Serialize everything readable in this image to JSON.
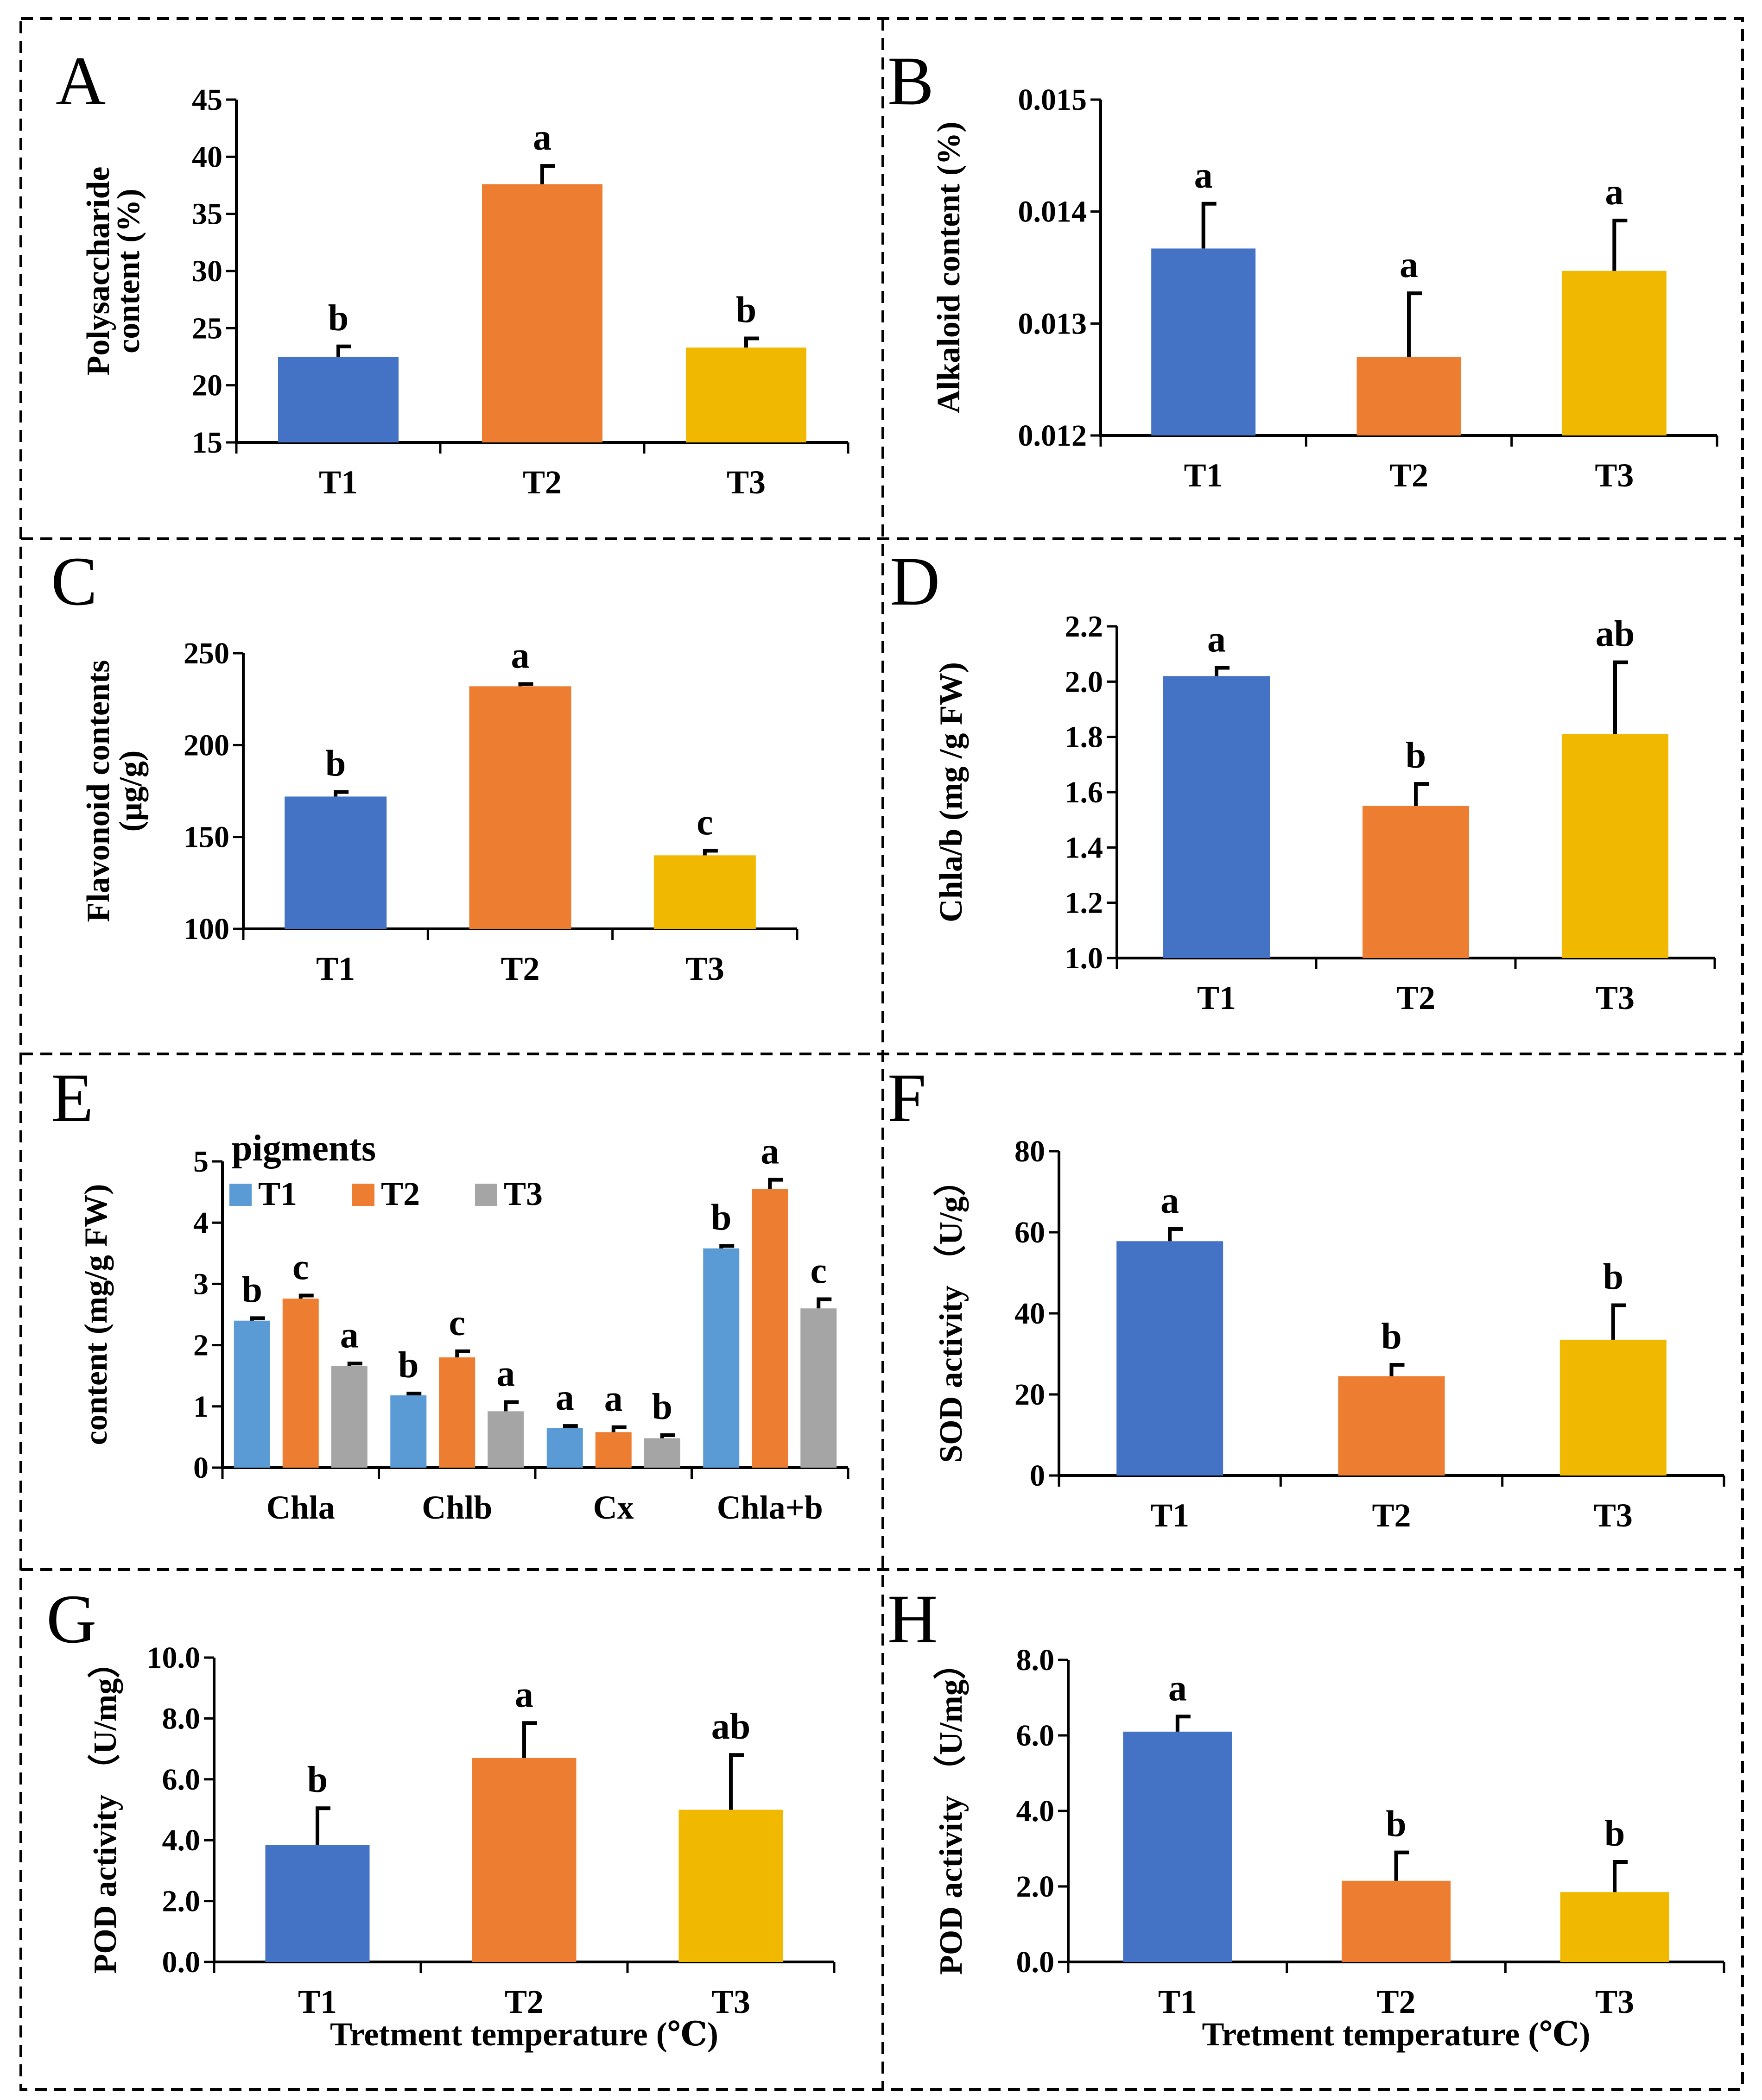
{
  "figure": {
    "colors": {
      "T1": "#4472C4",
      "T2": "#ED7D31",
      "T3": "#F1B800",
      "E_T1": "#5B9BD5",
      "E_T2": "#ED7D31",
      "E_T3": "#A5A5A5"
    }
  },
  "chart_data": [
    {
      "panel": "A",
      "type": "bar",
      "categories": [
        "T1",
        "T2",
        "T3"
      ],
      "values": [
        22.5,
        37.6,
        23.3
      ],
      "errors": [
        0.9,
        1.6,
        0.8
      ],
      "significance": [
        "b",
        "a",
        "b"
      ],
      "ylabel": [
        "Polysaccharide",
        "content (%)"
      ],
      "ylim": [
        15,
        45
      ],
      "yticks": [
        "15",
        "20",
        "25",
        "30",
        "35",
        "40",
        "45"
      ],
      "xlabel": ""
    },
    {
      "panel": "B",
      "type": "bar",
      "categories": [
        "T1",
        "T2",
        "T3"
      ],
      "values": [
        0.01367,
        0.0127,
        0.01347
      ],
      "errors": [
        0.0004,
        0.00057,
        0.00045
      ],
      "significance": [
        "a",
        "a",
        "a"
      ],
      "ylabel": [
        "Alkaloid content (%)"
      ],
      "ylim": [
        0.012,
        0.015
      ],
      "yticks": [
        "0.012",
        "0.013",
        "0.014",
        "0.015"
      ],
      "xlabel": ""
    },
    {
      "panel": "C",
      "type": "bar",
      "categories": [
        "T1",
        "T2",
        "T3"
      ],
      "values": [
        172,
        232,
        140
      ],
      "errors": [
        2.5,
        1.2,
        2.5
      ],
      "significance": [
        "b",
        "a",
        "c"
      ],
      "ylabel": [
        "Flavonoid contents",
        "(μg/g)"
      ],
      "ylim": [
        100,
        250
      ],
      "yticks": [
        "100",
        "150",
        "200",
        "250"
      ],
      "xlabel": ""
    },
    {
      "panel": "D",
      "type": "bar",
      "categories": [
        "T1",
        "T2",
        "T3"
      ],
      "values": [
        2.02,
        1.55,
        1.81
      ],
      "errors": [
        0.03,
        0.08,
        0.26
      ],
      "significance": [
        "a",
        "b",
        "ab"
      ],
      "ylabel": [
        "Chla/b (mg /g  FW)"
      ],
      "ylim": [
        1.0,
        2.2
      ],
      "yticks": [
        "1.0",
        "1.2",
        "1.4",
        "1.6",
        "1.8",
        "2.0",
        "2.2"
      ],
      "xlabel": ""
    },
    {
      "panel": "E",
      "type": "bar",
      "categories": [
        "Chla",
        "Chlb",
        "Cx",
        "Chla+b"
      ],
      "legend_title": "pigments",
      "series": [
        {
          "name": "T1",
          "values": [
            2.4,
            1.18,
            0.65,
            3.58
          ],
          "errors": [
            0.04,
            0.03,
            0.03,
            0.04
          ],
          "significance": [
            "b",
            "b",
            "a",
            "b"
          ]
        },
        {
          "name": "T2",
          "values": [
            2.76,
            1.8,
            0.58,
            4.55
          ],
          "errors": [
            0.05,
            0.1,
            0.08,
            0.15
          ],
          "significance": [
            "c",
            "c",
            "a",
            "a"
          ]
        },
        {
          "name": "T3",
          "values": [
            1.66,
            0.92,
            0.48,
            2.6
          ],
          "errors": [
            0.04,
            0.15,
            0.05,
            0.15
          ],
          "significance": [
            "a",
            "a",
            "b",
            "c"
          ]
        }
      ],
      "ylabel": [
        "content (mg/g FW)"
      ],
      "ylim": [
        0,
        5
      ],
      "yticks": [
        "0",
        "1",
        "2",
        "3",
        "4",
        "5"
      ],
      "xlabel": ""
    },
    {
      "panel": "F",
      "type": "bar",
      "categories": [
        "T1",
        "T2",
        "T3"
      ],
      "values": [
        57.8,
        24.5,
        33.5
      ],
      "errors": [
        3.0,
        2.8,
        8.5
      ],
      "significance": [
        "a",
        "b",
        "b"
      ],
      "ylabel": [
        "SOD activity （U/g）"
      ],
      "ylim": [
        0,
        80
      ],
      "yticks": [
        "0",
        "20",
        "40",
        "60",
        "80"
      ],
      "xlabel": ""
    },
    {
      "panel": "G",
      "type": "bar",
      "categories": [
        "T1",
        "T2",
        "T3"
      ],
      "values": [
        3.85,
        6.7,
        5.0
      ],
      "errors": [
        1.2,
        1.15,
        1.8
      ],
      "significance": [
        "b",
        "a",
        "ab"
      ],
      "ylabel": [
        "POD activity （U/mg）"
      ],
      "ylim": [
        0,
        10
      ],
      "yticks": [
        "0.0",
        "2.0",
        "4.0",
        "6.0",
        "8.0",
        "10.0"
      ],
      "xlabel": "Tretment temperature (℃)"
    },
    {
      "panel": "H",
      "type": "bar",
      "categories": [
        "T1",
        "T2",
        "T3"
      ],
      "values": [
        6.1,
        2.15,
        1.85
      ],
      "errors": [
        0.4,
        0.75,
        0.8
      ],
      "significance": [
        "a",
        "b",
        "b"
      ],
      "ylabel": [
        "POD activity （U/mg）"
      ],
      "ylim": [
        0,
        8
      ],
      "yticks": [
        "0.0",
        "2.0",
        "4.0",
        "6.0",
        "8.0"
      ],
      "xlabel": "Tretment temperature (℃)"
    }
  ]
}
